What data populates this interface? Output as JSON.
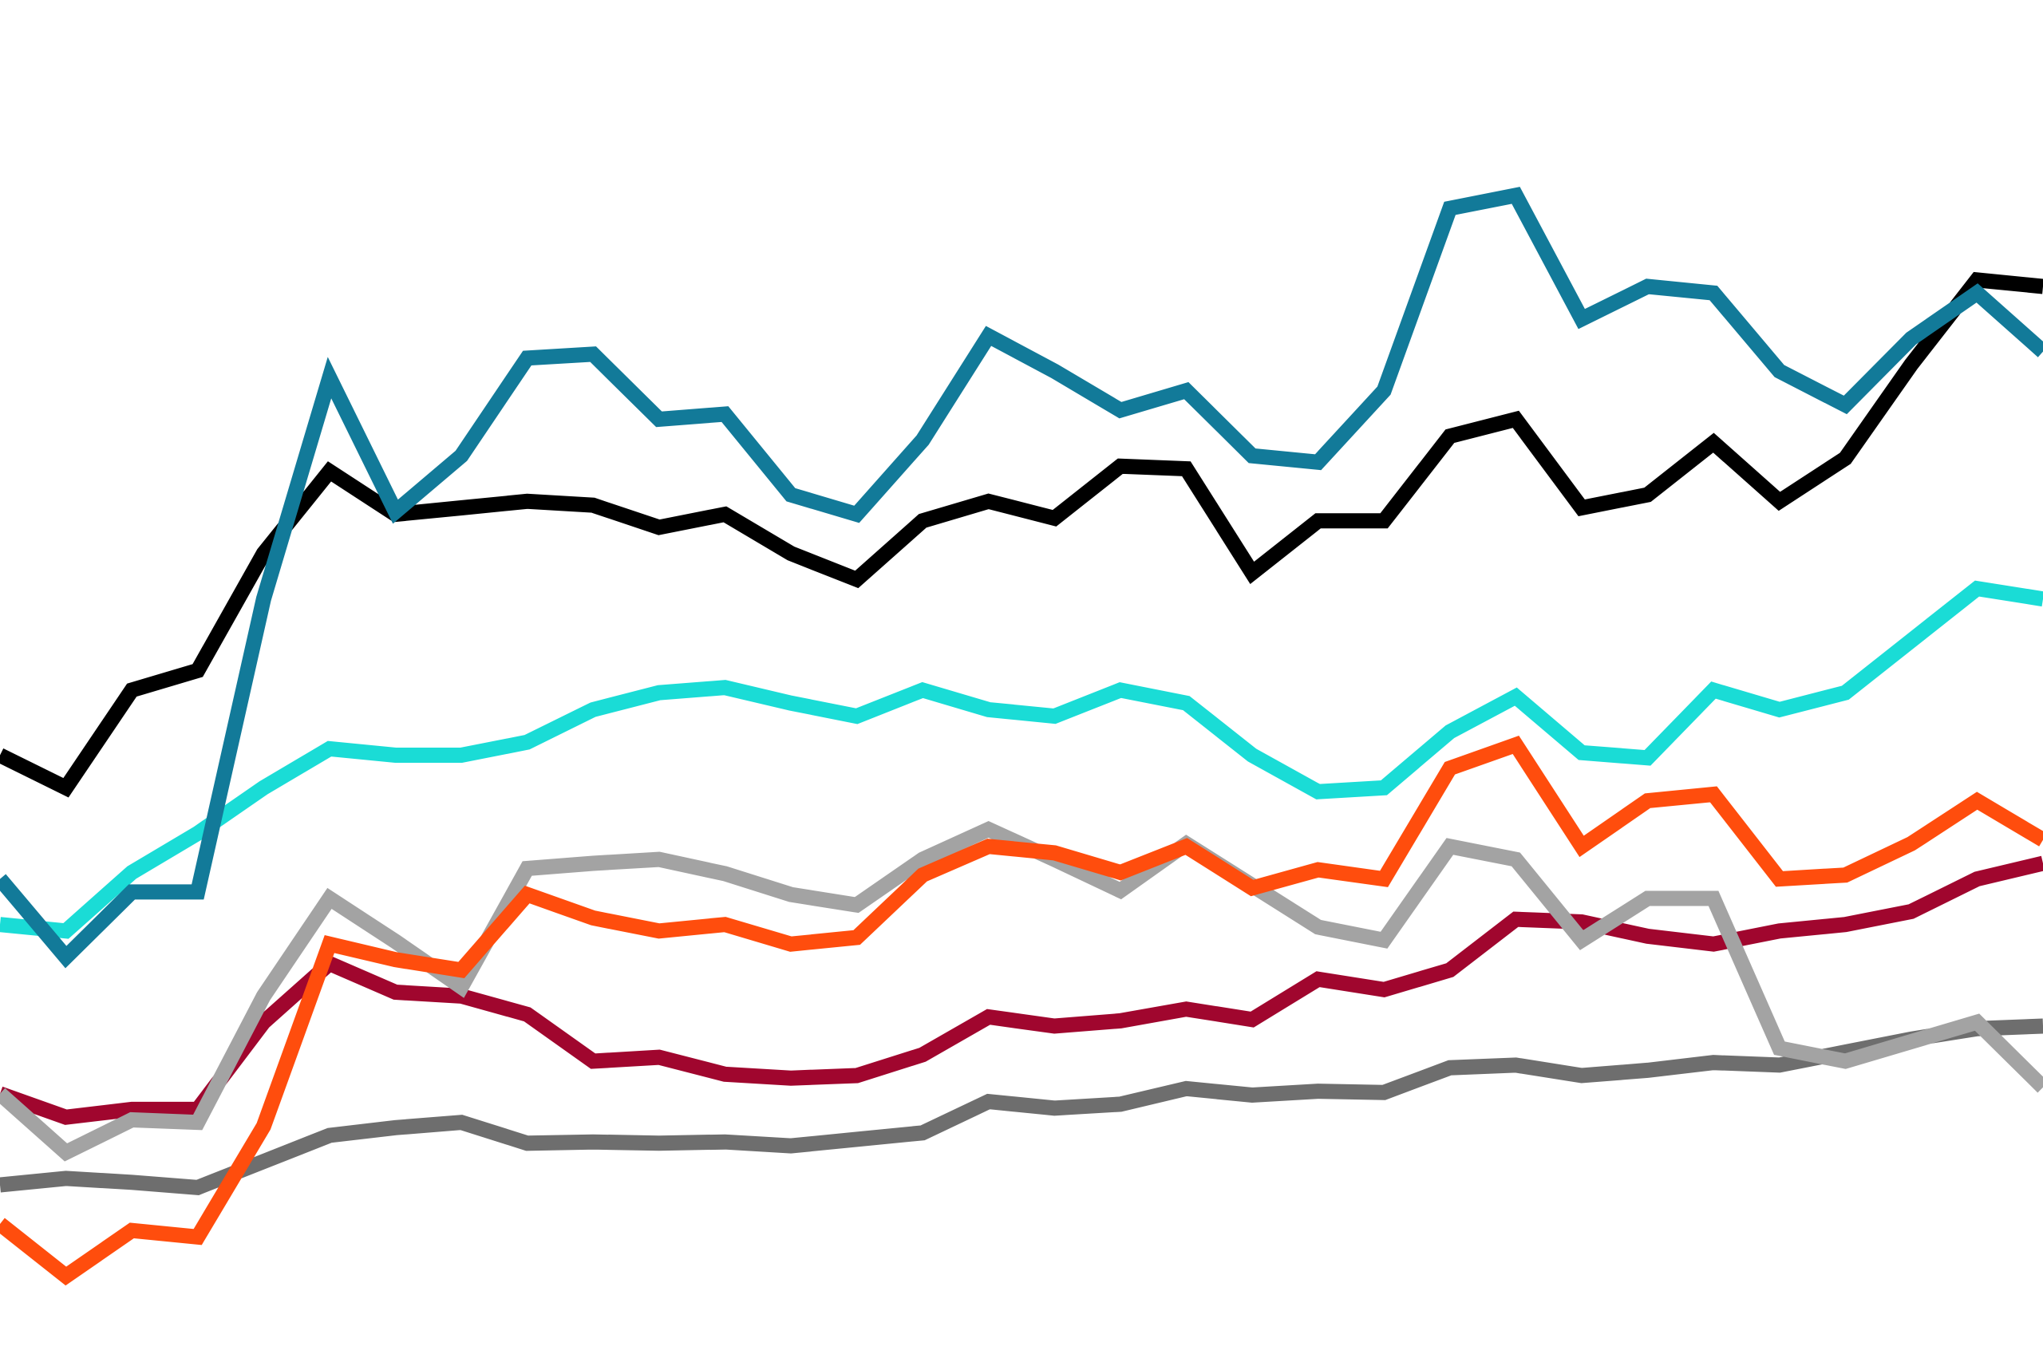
{
  "chart_data": {
    "type": "line",
    "categories": [
      null,
      null,
      null,
      null,
      null,
      null,
      null,
      null,
      null,
      null,
      null,
      null,
      null,
      null,
      null,
      null,
      null,
      null,
      null,
      null,
      null,
      null,
      null,
      null,
      null,
      null,
      null,
      null,
      null,
      null,
      null,
      null
    ],
    "ylim": [
      0,
      104.6
    ],
    "series": [
      {
        "color": "#6e6e6e",
        "values": [
          13.6,
          14.1,
          13.8,
          13.4,
          15.4,
          17.4,
          18.0,
          18.4,
          16.8,
          16.9,
          16.8,
          16.9,
          16.6,
          17.1,
          17.6,
          20.0,
          19.5,
          19.8,
          21.0,
          20.5,
          20.8,
          20.7,
          22.6,
          22.8,
          22.0,
          22.4,
          23.0,
          22.8,
          23.8,
          24.8,
          25.6,
          25.8
        ]
      },
      {
        "color": "#a0062e",
        "values": [
          20.6,
          18.8,
          19.4,
          19.4,
          26.1,
          30.6,
          28.4,
          28.1,
          26.7,
          23.1,
          23.4,
          22.1,
          21.8,
          22.0,
          23.6,
          26.5,
          25.8,
          26.2,
          27.1,
          26.3,
          29.4,
          28.6,
          30.1,
          34.0,
          33.8,
          32.7,
          32.1,
          33.1,
          33.6,
          34.6,
          37.1,
          38.3
        ]
      },
      {
        "color": "#a3a3a3",
        "values": [
          20.6,
          16.1,
          18.6,
          18.4,
          28.1,
          35.6,
          32.3,
          28.8,
          37.9,
          38.3,
          38.6,
          37.5,
          35.9,
          35.1,
          38.6,
          40.9,
          38.6,
          36.2,
          39.8,
          36.6,
          33.4,
          32.4,
          39.6,
          38.6,
          32.4,
          35.6,
          35.6,
          24.1,
          23.1,
          24.6,
          26.1,
          21.1
        ]
      },
      {
        "color": "#ff4d0d",
        "values": [
          10.6,
          6.6,
          10.1,
          9.6,
          18.1,
          32.1,
          30.9,
          30.1,
          35.9,
          34.1,
          33.1,
          33.6,
          32.1,
          32.6,
          37.4,
          39.6,
          39.1,
          37.6,
          39.6,
          36.4,
          37.8,
          37.1,
          45.6,
          47.4,
          39.6,
          43.1,
          43.6,
          37.1,
          37.4,
          39.8,
          43.1,
          40.1
        ]
      },
      {
        "color": "#1adcd6",
        "values": [
          33.6,
          33.1,
          37.6,
          40.6,
          44.1,
          47.1,
          46.6,
          46.6,
          47.6,
          50.1,
          51.4,
          51.8,
          50.6,
          49.6,
          51.6,
          50.1,
          49.6,
          51.6,
          50.6,
          46.6,
          43.8,
          44.1,
          48.4,
          51.1,
          46.8,
          46.4,
          51.6,
          50.1,
          51.4,
          55.4,
          59.4,
          58.6
        ]
      },
      {
        "color": "#000000",
        "values": [
          46.6,
          44.1,
          51.6,
          53.1,
          62.1,
          68.4,
          65.1,
          65.6,
          66.1,
          65.8,
          64.1,
          65.1,
          62.1,
          60.1,
          64.6,
          66.1,
          64.8,
          68.8,
          68.6,
          60.6,
          64.6,
          64.6,
          71.1,
          72.4,
          65.6,
          66.6,
          70.6,
          66.1,
          69.4,
          76.6,
          83.1,
          82.6
        ]
      },
      {
        "color": "#127a99",
        "values": [
          37.1,
          31.1,
          36.1,
          36.1,
          58.6,
          75.6,
          65.3,
          69.6,
          77.1,
          77.4,
          72.4,
          72.8,
          66.6,
          65.1,
          70.8,
          78.8,
          76.1,
          73.1,
          74.6,
          69.6,
          69.1,
          74.6,
          88.6,
          89.6,
          80.1,
          82.6,
          82.1,
          76.1,
          73.5,
          78.6,
          82.1,
          77.6
        ]
      }
    ]
  }
}
